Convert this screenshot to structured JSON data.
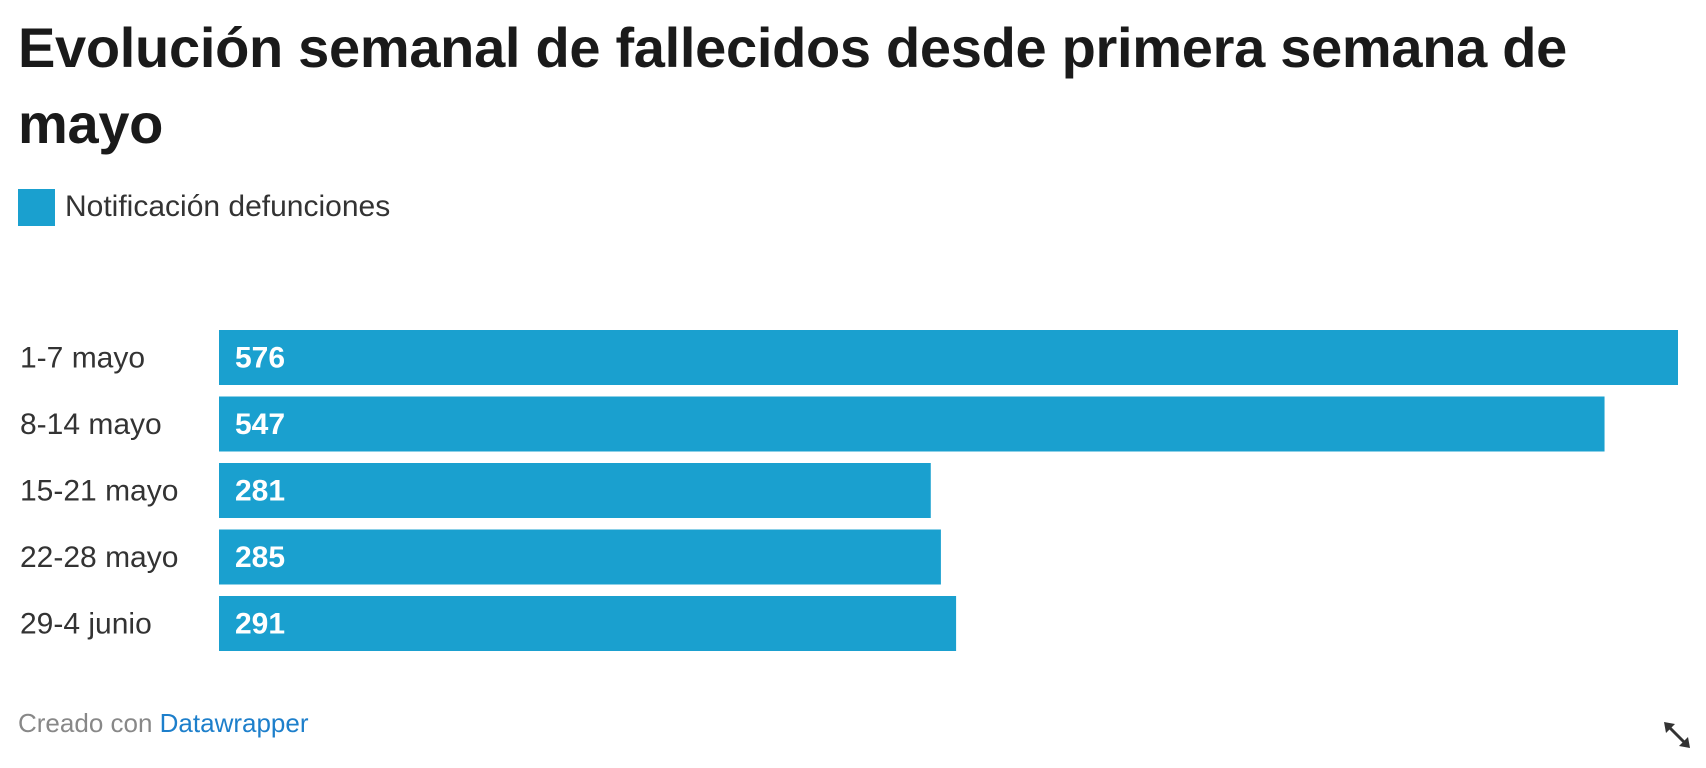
{
  "header": {
    "title": "Evolución semanal de fallecidos desde primera semana de mayo"
  },
  "legend": {
    "label": "Notificación defunciones"
  },
  "colors": {
    "bar": "#1aa0cf",
    "link": "#1d7fcb"
  },
  "footer": {
    "prefix": "Creado con ",
    "link": "Datawrapper"
  },
  "icons": {
    "expand": "expand-diagonal-icon"
  },
  "chart_data": {
    "type": "bar",
    "orientation": "horizontal",
    "categories": [
      "1-7 mayo",
      "8-14 mayo",
      "15-21 mayo",
      "22-28 mayo",
      "29-4 junio"
    ],
    "series": [
      {
        "name": "Notificación defunciones",
        "values": [
          576,
          547,
          281,
          285,
          291
        ]
      }
    ],
    "xlim": [
      0,
      576
    ],
    "grid": false,
    "legend": "top-left",
    "data_labels": true
  }
}
